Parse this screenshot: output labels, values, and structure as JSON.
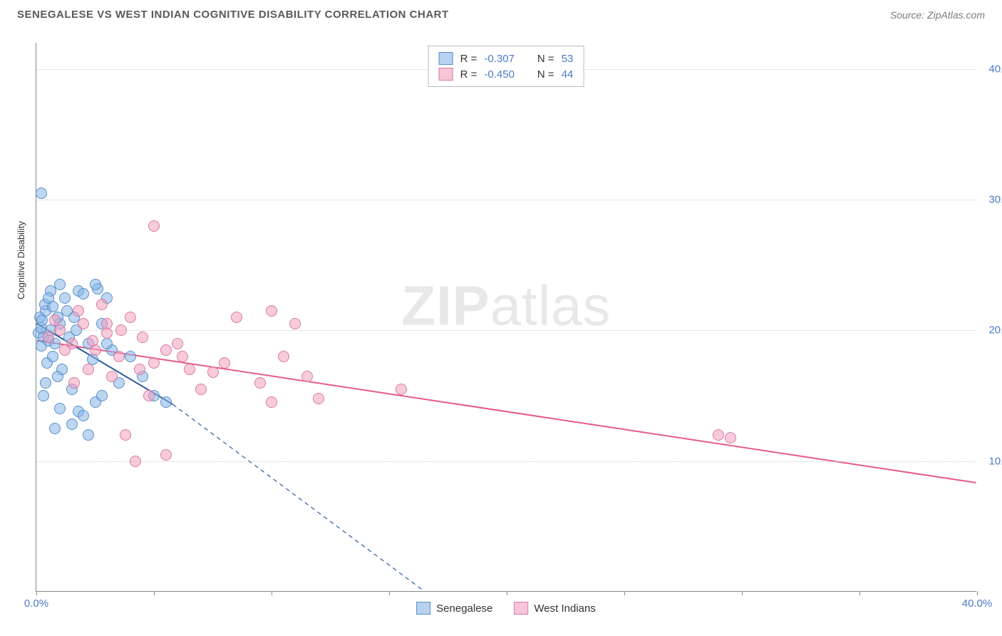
{
  "title": "SENEGALESE VS WEST INDIAN COGNITIVE DISABILITY CORRELATION CHART",
  "source": "Source: ZipAtlas.com",
  "y_axis_label": "Cognitive Disability",
  "watermark_bold": "ZIP",
  "watermark_rest": "atlas",
  "chart": {
    "type": "scatter",
    "xlim": [
      0,
      40
    ],
    "ylim": [
      0,
      42
    ],
    "y_ticks": [
      10,
      20,
      30,
      40
    ],
    "y_tick_labels": [
      "10.0%",
      "20.0%",
      "30.0%",
      "40.0%"
    ],
    "x_ticks": [
      0,
      5,
      10,
      15,
      20,
      25,
      30,
      35,
      40
    ],
    "x_tick_labels_shown": {
      "0": "0.0%",
      "40": "40.0%"
    },
    "background_color": "#ffffff",
    "grid_color": "#cccccc",
    "point_radius": 8,
    "series": [
      {
        "name": "Senegalese",
        "color_fill": "rgba(135,180,230,0.55)",
        "color_border": "#5a8fc8",
        "R": "-0.307",
        "N": "53",
        "trend": {
          "x1": 0,
          "y1": 20.5,
          "x2": 5.8,
          "y2": 14.3,
          "dash_x2": 16.5,
          "dash_y2": 0,
          "color": "#2a5a9a",
          "width": 2
        },
        "points": [
          [
            0.1,
            19.8
          ],
          [
            0.2,
            20.2
          ],
          [
            0.15,
            21.0
          ],
          [
            0.3,
            19.5
          ],
          [
            0.25,
            20.8
          ],
          [
            0.4,
            21.5
          ],
          [
            0.2,
            18.8
          ],
          [
            0.35,
            22.0
          ],
          [
            0.5,
            19.2
          ],
          [
            0.6,
            20.0
          ],
          [
            0.45,
            17.5
          ],
          [
            0.7,
            21.8
          ],
          [
            0.8,
            19.0
          ],
          [
            0.9,
            16.5
          ],
          [
            1.0,
            20.5
          ],
          [
            0.3,
            15.0
          ],
          [
            1.2,
            22.5
          ],
          [
            1.4,
            19.5
          ],
          [
            1.1,
            17.0
          ],
          [
            1.6,
            21.0
          ],
          [
            0.6,
            23.0
          ],
          [
            1.8,
            23.0
          ],
          [
            2.0,
            22.8
          ],
          [
            1.5,
            15.5
          ],
          [
            2.2,
            19.0
          ],
          [
            2.4,
            17.8
          ],
          [
            1.0,
            14.0
          ],
          [
            2.6,
            23.2
          ],
          [
            2.8,
            20.5
          ],
          [
            3.0,
            22.5
          ],
          [
            1.8,
            13.8
          ],
          [
            0.2,
            30.5
          ],
          [
            2.5,
            14.5
          ],
          [
            3.2,
            18.5
          ],
          [
            0.8,
            12.5
          ],
          [
            1.5,
            12.8
          ],
          [
            2.0,
            13.5
          ],
          [
            2.2,
            12.0
          ],
          [
            2.8,
            15.0
          ],
          [
            3.5,
            16.0
          ],
          [
            1.0,
            23.5
          ],
          [
            2.5,
            23.5
          ],
          [
            3.0,
            19.0
          ],
          [
            4.0,
            18.0
          ],
          [
            4.5,
            16.5
          ],
          [
            5.0,
            15.0
          ],
          [
            5.5,
            14.5
          ],
          [
            0.5,
            22.5
          ],
          [
            1.3,
            21.5
          ],
          [
            0.7,
            18.0
          ],
          [
            1.7,
            20.0
          ],
          [
            0.4,
            16.0
          ],
          [
            0.9,
            21.0
          ]
        ]
      },
      {
        "name": "West Indians",
        "color_fill": "rgba(240,160,190,0.55)",
        "color_border": "#d87aa0",
        "R": "-0.450",
        "N": "44",
        "trend": {
          "x1": 0,
          "y1": 19.2,
          "x2": 40,
          "y2": 8.3,
          "color": "#e85a8a",
          "width": 2
        },
        "points": [
          [
            0.5,
            19.5
          ],
          [
            1.0,
            20.0
          ],
          [
            1.5,
            19.0
          ],
          [
            2.0,
            20.5
          ],
          [
            1.8,
            21.5
          ],
          [
            2.5,
            18.5
          ],
          [
            3.0,
            19.8
          ],
          [
            2.8,
            22.0
          ],
          [
            3.5,
            18.0
          ],
          [
            4.0,
            21.0
          ],
          [
            3.2,
            16.5
          ],
          [
            4.5,
            19.5
          ],
          [
            5.0,
            28.0
          ],
          [
            5.0,
            17.5
          ],
          [
            5.5,
            18.5
          ],
          [
            6.0,
            19.0
          ],
          [
            4.8,
            15.0
          ],
          [
            6.5,
            17.0
          ],
          [
            7.0,
            15.5
          ],
          [
            5.5,
            10.5
          ],
          [
            4.2,
            10.0
          ],
          [
            3.8,
            12.0
          ],
          [
            8.5,
            21.0
          ],
          [
            10.0,
            21.5
          ],
          [
            8.0,
            17.5
          ],
          [
            11.0,
            20.5
          ],
          [
            9.5,
            16.0
          ],
          [
            10.5,
            18.0
          ],
          [
            11.5,
            16.5
          ],
          [
            10.0,
            14.5
          ],
          [
            12.0,
            14.8
          ],
          [
            15.5,
            15.5
          ],
          [
            29.0,
            12.0
          ],
          [
            29.5,
            11.8
          ],
          [
            3.0,
            20.5
          ],
          [
            2.2,
            17.0
          ],
          [
            1.2,
            18.5
          ],
          [
            0.8,
            20.8
          ],
          [
            1.6,
            16.0
          ],
          [
            2.4,
            19.2
          ],
          [
            3.6,
            20.0
          ],
          [
            4.4,
            17.0
          ],
          [
            6.2,
            18.0
          ],
          [
            7.5,
            16.8
          ]
        ]
      }
    ]
  },
  "stats_box": {
    "rows": [
      {
        "swatch": "blue",
        "R_label": "R =",
        "R": "-0.307",
        "N_label": "N =",
        "N": "53"
      },
      {
        "swatch": "pink",
        "R_label": "R =",
        "R": "-0.450",
        "N_label": "N =",
        "N": "44"
      }
    ]
  },
  "bottom_legend": [
    {
      "swatch": "blue",
      "label": "Senegalese"
    },
    {
      "swatch": "pink",
      "label": "West Indians"
    }
  ]
}
